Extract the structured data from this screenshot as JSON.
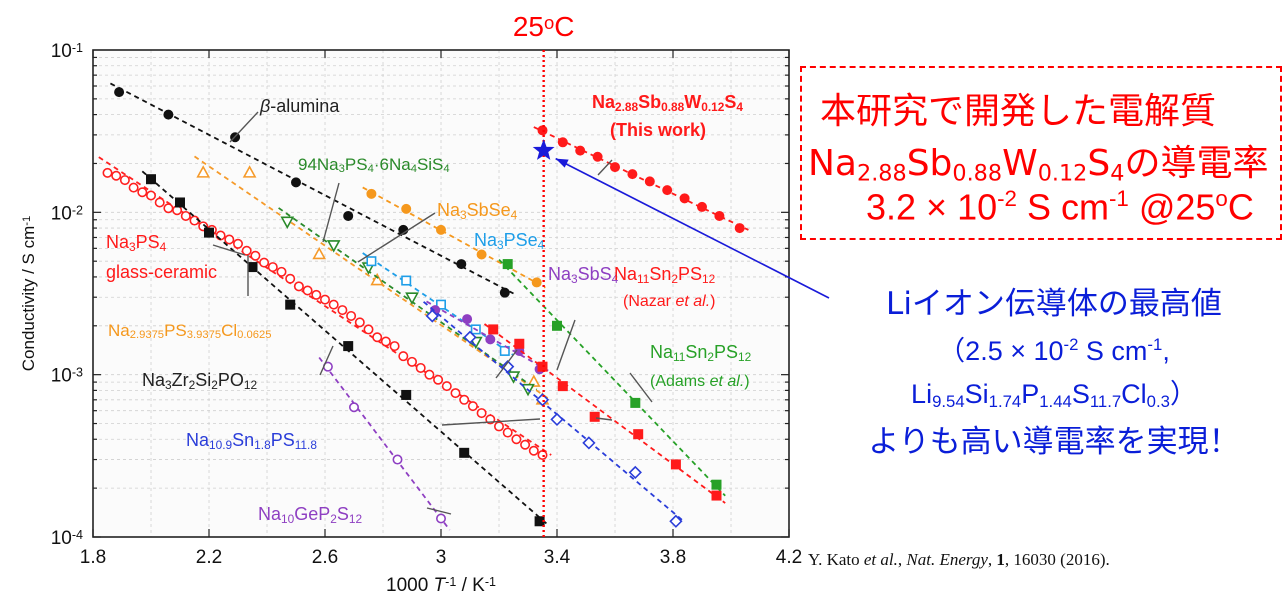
{
  "temp_label": {
    "base": "25",
    "sup": "o",
    "tail": "C"
  },
  "note": {
    "line1": "本研究で開発した電解質",
    "line2_chem": [
      [
        "Na",
        ""
      ],
      [
        "2.88",
        "sub"
      ],
      [
        "Sb",
        ""
      ],
      [
        "0.88",
        "sub"
      ],
      [
        "W",
        ""
      ],
      [
        "0.12",
        "sub"
      ],
      [
        "S",
        ""
      ],
      [
        "4",
        "sub"
      ],
      [
        "の導電率",
        ""
      ]
    ],
    "line3": [
      [
        "3.2 × 10",
        ""
      ],
      [
        "-2",
        "sup"
      ],
      [
        "  S cm",
        ""
      ],
      [
        "-1",
        "sup"
      ],
      [
        " @25",
        ""
      ],
      [
        "o",
        "sup"
      ],
      [
        "C",
        ""
      ]
    ]
  },
  "li_note": {
    "line1": "Liイオン伝導体の最高値",
    "line2": [
      [
        "（2.5 × 10",
        ""
      ],
      [
        "-2",
        "sup"
      ],
      [
        " S cm",
        ""
      ],
      [
        "-1",
        "sup"
      ],
      [
        ",",
        ""
      ]
    ],
    "line3": [
      [
        "Li",
        ""
      ],
      [
        "9.54",
        "sub"
      ],
      [
        "Si",
        ""
      ],
      [
        "1.74",
        "sub"
      ],
      [
        "P",
        ""
      ],
      [
        "1.44",
        "sub"
      ],
      [
        "S",
        ""
      ],
      [
        "11.7",
        "sub"
      ],
      [
        "Cl",
        ""
      ],
      [
        "0.3",
        "sub"
      ],
      [
        "）",
        ""
      ]
    ],
    "line4": "よりも高い導電率を実現！"
  },
  "reference": [
    [
      "Y. Kato ",
      ""
    ],
    [
      "et al.",
      "i"
    ],
    [
      ", ",
      ""
    ],
    [
      "Nat. Energy",
      "i"
    ],
    [
      ", ",
      ""
    ],
    [
      "1",
      "b"
    ],
    [
      ", 16030 (2016).",
      ""
    ]
  ],
  "chart_data": {
    "type": "scatter",
    "x_scale": "linear",
    "y_scale": "log",
    "xlim": [
      1.8,
      4.2
    ],
    "ylim": [
      0.0001,
      0.1
    ],
    "x_ticks": [
      "1.8",
      "2.2",
      "2.6",
      "3",
      "3.4",
      "3.8",
      "4.2"
    ],
    "y_ticks": [
      {
        "b": "10",
        "e": "-1"
      },
      {
        "b": "10",
        "e": "-2"
      },
      {
        "b": "10",
        "e": "-3"
      },
      {
        "b": "10",
        "e": "-4"
      }
    ],
    "xlabel": [
      [
        "1000 ",
        ""
      ],
      [
        "T",
        "i"
      ],
      [
        "-1",
        "sup"
      ],
      [
        " / K",
        ""
      ],
      [
        "-1",
        "sup"
      ]
    ],
    "ylabel": [
      [
        "Conductivity / S cm",
        ""
      ],
      [
        "-1",
        "sup"
      ]
    ],
    "vline": {
      "x": 3.354,
      "color": "#ff0000"
    },
    "series": [
      {
        "name": "β-alumina",
        "marker": "circle",
        "fill": true,
        "color": "#111111",
        "x": [
          1.89,
          2.06,
          2.29,
          2.5,
          2.68,
          2.87,
          3.07,
          3.22
        ],
        "y": [
          0.055,
          0.04,
          0.029,
          0.0153,
          0.0095,
          0.0078,
          0.0048,
          0.0032
        ]
      },
      {
        "name": "Na3PS4 glass-ceramic",
        "marker": "circle",
        "fill": false,
        "color": "#ff2020",
        "x": [
          1.85,
          1.88,
          1.91,
          1.94,
          1.97,
          2.0,
          2.03,
          2.06,
          2.09,
          2.12,
          2.15,
          2.18,
          2.21,
          2.24,
          2.27,
          2.3,
          2.33,
          2.36,
          2.39,
          2.42,
          2.45,
          2.48,
          2.51,
          2.54,
          2.57,
          2.6,
          2.63,
          2.66,
          2.69,
          2.72,
          2.75,
          2.78,
          2.81,
          2.84,
          2.87,
          2.9,
          2.93,
          2.96,
          2.99,
          3.02,
          3.05,
          3.08,
          3.11,
          3.14,
          3.17,
          3.2,
          3.23,
          3.26,
          3.29,
          3.32,
          3.35
        ],
        "y": [
          0.0175,
          0.0168,
          0.0158,
          0.0142,
          0.0133,
          0.0127,
          0.0115,
          0.0106,
          0.0103,
          0.0095,
          0.0089,
          0.0082,
          0.0078,
          0.0072,
          0.0068,
          0.0064,
          0.0058,
          0.0054,
          0.0049,
          0.0046,
          0.0043,
          0.0039,
          0.0035,
          0.0033,
          0.0031,
          0.0029,
          0.0027,
          0.0025,
          0.0023,
          0.0021,
          0.0019,
          0.0017,
          0.0016,
          0.0015,
          0.0013,
          0.0012,
          0.0011,
          0.001,
          0.00093,
          0.00085,
          0.00077,
          0.0007,
          0.00064,
          0.00058,
          0.00053,
          0.00048,
          0.00044,
          0.0004,
          0.00037,
          0.00034,
          0.00032
        ]
      },
      {
        "name": "Na3Zr2Si2PO12",
        "marker": "square",
        "fill": true,
        "color": "#111111",
        "x": [
          2.0,
          2.1,
          2.2,
          2.35,
          2.48,
          2.68,
          2.88,
          3.08,
          3.34
        ],
        "y": [
          0.016,
          0.0115,
          0.0075,
          0.0046,
          0.0027,
          0.0015,
          0.00075,
          0.00033,
          0.000125
        ]
      },
      {
        "name": "Na2.9375PS3.9375Cl0.0625",
        "marker": "triangle",
        "fill": false,
        "color": "#f59a2a",
        "x": [
          2.18,
          2.34,
          2.58,
          2.78,
          3.32,
          3.35
        ],
        "y": [
          0.0175,
          0.0175,
          0.0055,
          0.0038,
          0.0009,
          0.0007
        ]
      },
      {
        "name": "94Na3PS4·6Na4SiS4",
        "marker": "triangle-down",
        "fill": false,
        "color": "#2a8a2a",
        "x": [
          2.47,
          2.63,
          2.75,
          2.9,
          3.12,
          3.25,
          3.3
        ],
        "y": [
          0.0088,
          0.0063,
          0.0046,
          0.003,
          0.0016,
          0.00098,
          0.00082
        ]
      },
      {
        "name": "Na3SbSe4",
        "marker": "circle",
        "fill": true,
        "color": "#f5981d",
        "x": [
          2.76,
          2.88,
          3.0,
          3.14,
          3.33
        ],
        "y": [
          0.013,
          0.0105,
          0.0078,
          0.0055,
          0.0037
        ]
      },
      {
        "name": "Na3PSe4",
        "marker": "square",
        "fill": false,
        "color": "#1e9ee8",
        "x": [
          2.76,
          2.88,
          3.0,
          3.12,
          3.22
        ],
        "y": [
          0.005,
          0.0038,
          0.0027,
          0.0019,
          0.0014
        ]
      },
      {
        "name": "Na3SbS4",
        "marker": "circle",
        "fill": true,
        "color": "#8e3fc2",
        "x": [
          2.98,
          3.09,
          3.17,
          3.27,
          3.34
        ],
        "y": [
          0.0025,
          0.0022,
          0.00165,
          0.0014,
          0.00108
        ]
      },
      {
        "name": "Na10.9Sn1.8PS11.8",
        "marker": "diamond",
        "fill": false,
        "color": "#2a3dd9",
        "x": [
          2.97,
          3.1,
          3.23,
          3.35,
          3.4,
          3.51,
          3.67,
          3.81
        ],
        "y": [
          0.0023,
          0.0017,
          0.00112,
          0.0007,
          0.00053,
          0.00038,
          0.00025,
          0.000125
        ]
      },
      {
        "name": "Na11Sn2PS12 (Nazar et al.)",
        "marker": "square",
        "fill": true,
        "color": "#ff1a1a",
        "x": [
          3.18,
          3.27,
          3.35,
          3.42,
          3.53,
          3.68,
          3.81,
          3.95
        ],
        "y": [
          0.0019,
          0.00155,
          0.00112,
          0.00085,
          0.00055,
          0.00043,
          0.00028,
          0.00018
        ]
      },
      {
        "name": "Na11Sn2PS12 (Adams et al.)",
        "marker": "square",
        "fill": true,
        "color": "#27a127",
        "x": [
          3.23,
          3.4,
          3.67,
          3.95
        ],
        "y": [
          0.0048,
          0.002,
          0.00067,
          0.00021
        ]
      },
      {
        "name": "Na10GeP2S12",
        "marker": "circle",
        "fill": false,
        "color": "#8e3fc2",
        "x": [
          2.61,
          2.7,
          2.85,
          3.0
        ],
        "y": [
          0.00112,
          0.00063,
          0.0003,
          0.00013
        ]
      },
      {
        "name": "Na2.88Sb0.88W0.12S4 (This work)",
        "marker": "circle",
        "fill": true,
        "color": "#ff1a1a",
        "x": [
          3.35,
          3.42,
          3.48,
          3.54,
          3.6,
          3.66,
          3.72,
          3.78,
          3.84,
          3.9,
          3.96,
          4.03
        ],
        "y": [
          0.032,
          0.027,
          0.024,
          0.022,
          0.019,
          0.0172,
          0.0155,
          0.0137,
          0.0122,
          0.0108,
          0.0095,
          0.008
        ]
      }
    ],
    "star_point": {
      "x": 3.354,
      "y": 0.024,
      "color": "#1a1ad9"
    },
    "annotations": [
      {
        "id": "beta",
        "color": "#222222",
        "parts": [
          [
            "β",
            "i"
          ],
          [
            "-alumina",
            ""
          ]
        ]
      },
      {
        "id": "na3ps4",
        "color": "#ff1a1a",
        "parts": [
          [
            "Na",
            ""
          ],
          [
            "3",
            "sub"
          ],
          [
            "PS",
            ""
          ],
          [
            "4",
            "sub"
          ]
        ]
      },
      {
        "id": "glass",
        "color": "#ff1a1a",
        "parts": [
          [
            "glass-ceramic",
            ""
          ]
        ]
      },
      {
        "id": "cl",
        "color": "#f5981d",
        "parts": [
          [
            "Na",
            ""
          ],
          [
            "2.9375",
            "sub"
          ],
          [
            "PS",
            ""
          ],
          [
            "3.9375",
            "sub"
          ],
          [
            "Cl",
            ""
          ],
          [
            "0.0625",
            "sub"
          ]
        ]
      },
      {
        "id": "nzsp",
        "color": "#222222",
        "parts": [
          [
            "Na",
            ""
          ],
          [
            "3",
            "sub"
          ],
          [
            "Zr",
            ""
          ],
          [
            "2",
            "sub"
          ],
          [
            "Si",
            ""
          ],
          [
            "2",
            "sub"
          ],
          [
            "PO",
            ""
          ],
          [
            "12",
            "sub"
          ]
        ]
      },
      {
        "id": "si",
        "color": "#2a8a2a",
        "parts": [
          [
            "94Na",
            ""
          ],
          [
            "3",
            "sub"
          ],
          [
            "PS",
            ""
          ],
          [
            "4",
            "sub"
          ],
          [
            "·6Na",
            ""
          ],
          [
            "4",
            "sub"
          ],
          [
            "SiS",
            ""
          ],
          [
            "4",
            "sub"
          ]
        ]
      },
      {
        "id": "sbse",
        "color": "#f5981d",
        "parts": [
          [
            "Na",
            ""
          ],
          [
            "3",
            "sub"
          ],
          [
            "SbSe",
            ""
          ],
          [
            "4",
            "sub"
          ]
        ]
      },
      {
        "id": "pse",
        "color": "#1e9ee8",
        "parts": [
          [
            "Na",
            ""
          ],
          [
            "3",
            "sub"
          ],
          [
            "PSe",
            ""
          ],
          [
            "4",
            "sub"
          ]
        ]
      },
      {
        "id": "sbs",
        "color": "#8e3fc2",
        "parts": [
          [
            "Na",
            ""
          ],
          [
            "3",
            "sub"
          ],
          [
            "SbS",
            ""
          ],
          [
            "4",
            "sub"
          ]
        ]
      },
      {
        "id": "nazar",
        "color": "#ff1a1a",
        "parts": [
          [
            "Na",
            ""
          ],
          [
            "11",
            "sub"
          ],
          [
            "Sn",
            ""
          ],
          [
            "2",
            "sub"
          ],
          [
            "PS",
            ""
          ],
          [
            "12",
            "sub"
          ]
        ]
      },
      {
        "id": "nazar2",
        "color": "#ff1a1a",
        "parts": [
          [
            "(Nazar ",
            ""
          ],
          [
            "et al.",
            "i"
          ],
          [
            ")",
            ""
          ]
        ]
      },
      {
        "id": "adams",
        "color": "#27a127",
        "parts": [
          [
            "Na",
            ""
          ],
          [
            "11",
            "sub"
          ],
          [
            "Sn",
            ""
          ],
          [
            "2",
            "sub"
          ],
          [
            "PS",
            ""
          ],
          [
            "12",
            "sub"
          ]
        ]
      },
      {
        "id": "adams2",
        "color": "#27a127",
        "parts": [
          [
            "(Adams ",
            ""
          ],
          [
            "et al.",
            "i"
          ],
          [
            ")",
            ""
          ]
        ]
      },
      {
        "id": "nasn",
        "color": "#2a3dd9",
        "parts": [
          [
            "Na",
            ""
          ],
          [
            "10.9",
            "sub"
          ],
          [
            "Sn",
            ""
          ],
          [
            "1.8",
            "sub"
          ],
          [
            "PS",
            ""
          ],
          [
            "11.8",
            "sub"
          ]
        ]
      },
      {
        "id": "ge",
        "color": "#8e3fc2",
        "parts": [
          [
            "Na",
            ""
          ],
          [
            "10",
            "sub"
          ],
          [
            "GeP",
            ""
          ],
          [
            "2",
            "sub"
          ],
          [
            "S",
            ""
          ],
          [
            "12",
            "sub"
          ]
        ]
      },
      {
        "id": "this1",
        "color": "#ff1a1a",
        "bold": true,
        "parts": [
          [
            "Na",
            ""
          ],
          [
            "2.88",
            "sub"
          ],
          [
            "Sb",
            ""
          ],
          [
            "0.88",
            "sub"
          ],
          [
            "W",
            ""
          ],
          [
            "0.12",
            "sub"
          ],
          [
            "S",
            ""
          ],
          [
            "4",
            "sub"
          ]
        ]
      },
      {
        "id": "this2",
        "color": "#ff1a1a",
        "bold": true,
        "parts": [
          [
            "(This work)",
            ""
          ]
        ]
      }
    ]
  }
}
